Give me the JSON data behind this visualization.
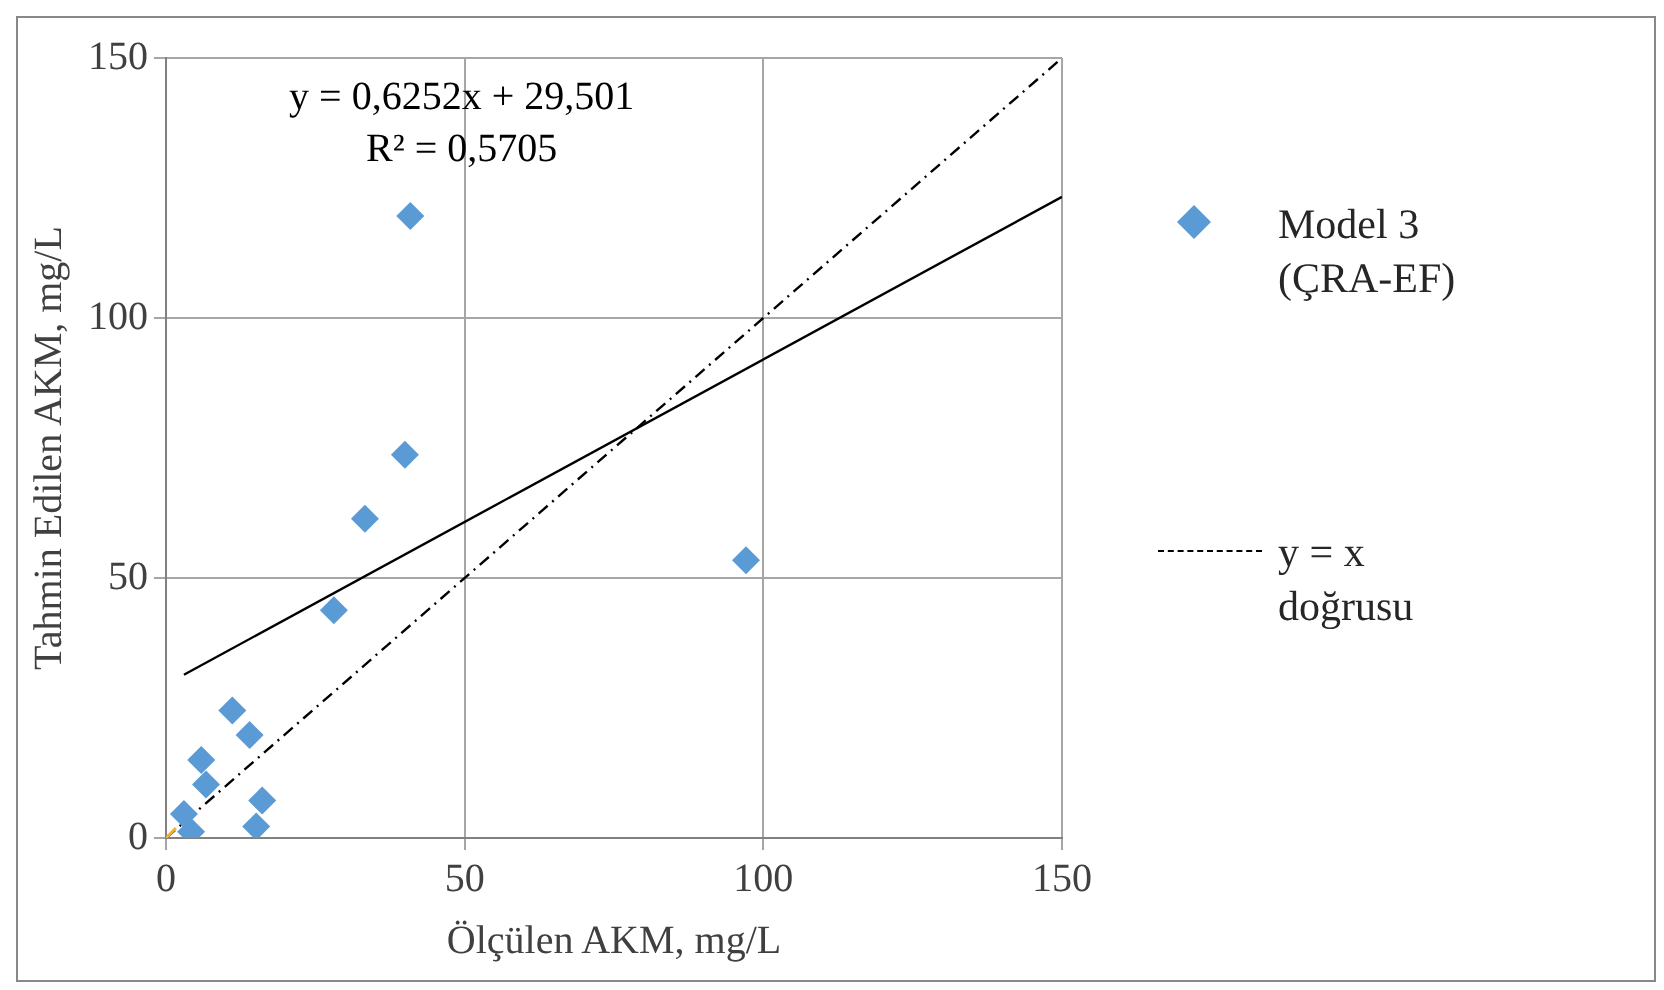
{
  "chart_data": {
    "type": "scatter",
    "xlabel": "Ölçülen AKM, mg/L",
    "ylabel": "Tahmin Edilen AKM, mg/L",
    "xlim": [
      0,
      150
    ],
    "ylim": [
      0,
      150
    ],
    "xticks": [
      0,
      50,
      100,
      150
    ],
    "yticks": [
      0,
      50,
      100,
      150
    ],
    "grid": true,
    "legend": "right",
    "annotations": [
      "y = 0,6252x + 29,501",
      "R² = 0,5705"
    ],
    "series": [
      {
        "name": "Model 3 (ÇRA-EF)",
        "marker": "diamond",
        "color": "#5b9bd5",
        "x": [
          40.9,
          40.0,
          33.3,
          97.1,
          28.1,
          11.1,
          14.0,
          5.9,
          6.7,
          16.1,
          15.1,
          3.0,
          4.2
        ],
        "values": [
          119.6,
          73.7,
          61.4,
          53.4,
          43.8,
          24.5,
          19.8,
          15.0,
          10.3,
          7.2,
          2.2,
          4.6,
          1.2
        ]
      },
      {
        "marker": "cross",
        "color": "#f0b030",
        "x": [
          0
        ],
        "values": [
          0
        ]
      },
      {
        "type": "line",
        "marker": "none",
        "line_style": "solid",
        "color": "#000000",
        "x": [
          3,
          150
        ],
        "values": [
          31.4,
          123.3
        ]
      },
      {
        "name": "y = x doğrusu",
        "type": "line",
        "marker": "none",
        "line_style": "dashed",
        "color": "#000000",
        "x": [
          0,
          150
        ],
        "values": [
          0,
          150
        ]
      }
    ]
  }
}
